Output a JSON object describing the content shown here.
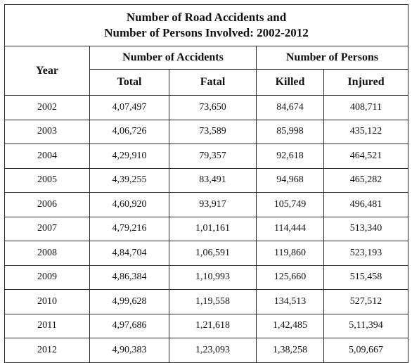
{
  "chart_data": {
    "type": "table",
    "title": [
      "Number of Road Accidents and",
      "Number of Persons Involved: 2002-2012"
    ],
    "group_headers": {
      "year": "Year",
      "accidents": "Number of Accidents",
      "persons": "Number of Persons"
    },
    "columns": [
      "Total",
      "Fatal",
      "Killed",
      "Injured"
    ],
    "rows": [
      {
        "year": "2002",
        "total": "4,07,497",
        "fatal": "73,650",
        "killed": "84,674",
        "injured": "408,711"
      },
      {
        "year": "2003",
        "total": "4,06,726",
        "fatal": "73,589",
        "killed": "85,998",
        "injured": "435,122"
      },
      {
        "year": "2004",
        "total": "4,29,910",
        "fatal": "79,357",
        "killed": "92,618",
        "injured": "464,521"
      },
      {
        "year": "2005",
        "total": "4,39,255",
        "fatal": "83,491",
        "killed": "94,968",
        "injured": "465,282"
      },
      {
        "year": "2006",
        "total": "4,60,920",
        "fatal": "93,917",
        "killed": "105,749",
        "injured": "496,481"
      },
      {
        "year": "2007",
        "total": "4,79,216",
        "fatal": "1,01,161",
        "killed": "114,444",
        "injured": "513,340"
      },
      {
        "year": "2008",
        "total": "4,84,704",
        "fatal": "1,06,591",
        "killed": "119,860",
        "injured": "523,193"
      },
      {
        "year": "2009",
        "total": "4,86,384",
        "fatal": "1,10,993",
        "killed": "125,660",
        "injured": "515,458"
      },
      {
        "year": "2010",
        "total": "4,99,628",
        "fatal": "1,19,558",
        "killed": "134,513",
        "injured": "527,512"
      },
      {
        "year": "2011",
        "total": "4,97,686",
        "fatal": "1,21,618",
        "killed": "1,42,485",
        "injured": "5,11,394"
      },
      {
        "year": "2012",
        "total": "4,90,383",
        "fatal": "1,23,093",
        "killed": "1,38,258",
        "injured": "5,09,667"
      }
    ]
  }
}
